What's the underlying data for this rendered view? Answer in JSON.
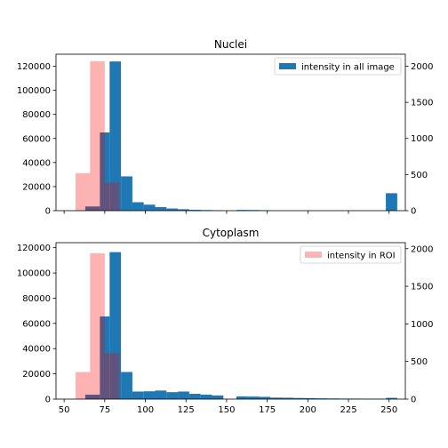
{
  "chart_data": [
    {
      "type": "bar",
      "title": "Nuclei",
      "xlim": [
        45,
        260
      ],
      "ylim": [
        0,
        130000
      ],
      "ylim_right": [
        0,
        2166
      ],
      "yticks": [
        0,
        20000,
        40000,
        60000,
        80000,
        100000,
        120000
      ],
      "yticks_right": [
        0,
        500,
        1000,
        1500,
        2000
      ],
      "xticks": [
        50,
        75,
        100,
        125,
        150,
        175,
        200,
        225,
        250
      ],
      "show_xtick_labels": false,
      "legend": {
        "label": "intensity in all image",
        "color": "#1f77b4",
        "position": "upper right"
      },
      "series": [
        {
          "name": "intensity in all image",
          "axis": "left",
          "color": "#1f77b4",
          "bins": [
            {
              "x0": 63,
              "x1": 72,
              "v": 3500
            },
            {
              "x0": 72,
              "x1": 78,
              "v": 65000
            },
            {
              "x0": 78,
              "x1": 85,
              "v": 124000
            },
            {
              "x0": 85,
              "x1": 92,
              "v": 28500
            },
            {
              "x0": 92,
              "x1": 99,
              "v": 7000
            },
            {
              "x0": 99,
              "x1": 106,
              "v": 5000
            },
            {
              "x0": 106,
              "x1": 113,
              "v": 3000
            },
            {
              "x0": 113,
              "x1": 120,
              "v": 1800
            },
            {
              "x0": 120,
              "x1": 127,
              "v": 1200
            },
            {
              "x0": 127,
              "x1": 134,
              "v": 700
            },
            {
              "x0": 134,
              "x1": 141,
              "v": 500
            },
            {
              "x0": 141,
              "x1": 148,
              "v": 300
            },
            {
              "x0": 156,
              "x1": 163,
              "v": 600
            },
            {
              "x0": 163,
              "x1": 170,
              "v": 500
            },
            {
              "x0": 170,
              "x1": 177,
              "v": 300
            },
            {
              "x0": 248,
              "x1": 255,
              "v": 14500
            }
          ]
        },
        {
          "name": "intensity in ROI",
          "axis": "right",
          "color": "#ff0000",
          "opacity": 0.3,
          "bins": [
            {
              "x0": 57,
              "x1": 66,
              "v": 520
            },
            {
              "x0": 66,
              "x1": 75,
              "v": 2070
            },
            {
              "x0": 75,
              "x1": 84,
              "v": 390
            }
          ]
        }
      ]
    },
    {
      "type": "bar",
      "title": "Cytoplasm",
      "xlim": [
        45,
        260
      ],
      "ylim": [
        0,
        124000
      ],
      "ylim_right": [
        0,
        2080
      ],
      "yticks": [
        0,
        20000,
        40000,
        60000,
        80000,
        100000,
        120000
      ],
      "yticks_right": [
        0,
        500,
        1000,
        1500,
        2000
      ],
      "xticks": [
        50,
        75,
        100,
        125,
        150,
        175,
        200,
        225,
        250
      ],
      "show_xtick_labels": true,
      "legend": {
        "label": "intensity in ROI",
        "color": "#ffb3b3",
        "position": "upper right"
      },
      "series": [
        {
          "name": "intensity in all image",
          "axis": "left",
          "color": "#1f77b4",
          "bins": [
            {
              "x0": 63,
              "x1": 72,
              "v": 3500
            },
            {
              "x0": 72,
              "x1": 78,
              "v": 65500
            },
            {
              "x0": 78,
              "x1": 85,
              "v": 116500
            },
            {
              "x0": 85,
              "x1": 92,
              "v": 21500
            },
            {
              "x0": 92,
              "x1": 99,
              "v": 6000
            },
            {
              "x0": 99,
              "x1": 106,
              "v": 6200
            },
            {
              "x0": 106,
              "x1": 113,
              "v": 6800
            },
            {
              "x0": 113,
              "x1": 120,
              "v": 5500
            },
            {
              "x0": 120,
              "x1": 127,
              "v": 6000
            },
            {
              "x0": 127,
              "x1": 134,
              "v": 4200
            },
            {
              "x0": 134,
              "x1": 141,
              "v": 3500
            },
            {
              "x0": 141,
              "x1": 148,
              "v": 2900
            },
            {
              "x0": 148,
              "x1": 156,
              "v": 0
            },
            {
              "x0": 156,
              "x1": 163,
              "v": 2100
            },
            {
              "x0": 163,
              "x1": 170,
              "v": 2000
            },
            {
              "x0": 170,
              "x1": 177,
              "v": 1800
            },
            {
              "x0": 177,
              "x1": 184,
              "v": 1200
            },
            {
              "x0": 184,
              "x1": 191,
              "v": 1100
            },
            {
              "x0": 191,
              "x1": 198,
              "v": 900
            },
            {
              "x0": 198,
              "x1": 205,
              "v": 800
            },
            {
              "x0": 205,
              "x1": 212,
              "v": 600
            },
            {
              "x0": 212,
              "x1": 219,
              "v": 500
            },
            {
              "x0": 219,
              "x1": 226,
              "v": 400
            },
            {
              "x0": 226,
              "x1": 233,
              "v": 400
            },
            {
              "x0": 233,
              "x1": 240,
              "v": 300
            },
            {
              "x0": 240,
              "x1": 247,
              "v": 300
            },
            {
              "x0": 248,
              "x1": 255,
              "v": 1000
            }
          ]
        },
        {
          "name": "intensity in ROI",
          "axis": "right",
          "color": "#ff0000",
          "opacity": 0.3,
          "bins": [
            {
              "x0": 57,
              "x1": 66,
              "v": 360
            },
            {
              "x0": 66,
              "x1": 75,
              "v": 1940
            },
            {
              "x0": 75,
              "x1": 84,
              "v": 610
            }
          ]
        }
      ]
    }
  ]
}
